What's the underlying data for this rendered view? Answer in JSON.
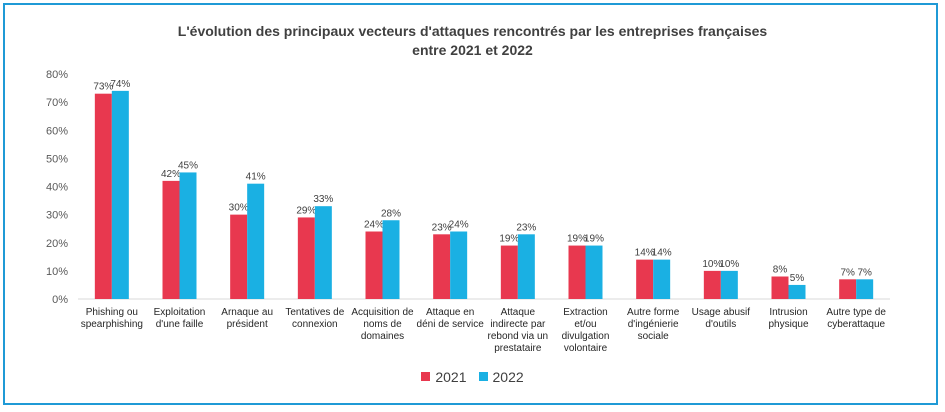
{
  "chart_data": {
    "type": "bar",
    "title_line1": "L'évolution des principaux vecteurs d'attaques rencontrés par les entreprises françaises",
    "title_line2": "entre 2021 et 2022",
    "xlabel": "",
    "ylabel": "",
    "ylim": [
      0,
      80
    ],
    "yticks": [
      "0%",
      "10%",
      "20%",
      "30%",
      "40%",
      "50%",
      "60%",
      "70%",
      "80%"
    ],
    "grid": false,
    "legend_position": "bottom",
    "categories": [
      [
        "Phishing ou",
        "spearphishing"
      ],
      [
        "Exploitation",
        "d'une faille"
      ],
      [
        "Arnaque au",
        "président"
      ],
      [
        "Tentatives de",
        "connexion"
      ],
      [
        "Acquisition de",
        "noms de",
        "domaines"
      ],
      [
        "Attaque en",
        "déni de service"
      ],
      [
        "Attaque",
        "indirecte par",
        "rebond via un",
        "prestataire"
      ],
      [
        "Extraction",
        "et/ou",
        "divulgation",
        "volontaire"
      ],
      [
        "Autre forme",
        "d'ingénierie",
        "sociale"
      ],
      [
        "Usage abusif",
        "d'outils"
      ],
      [
        "Intrusion",
        "physique"
      ],
      [
        "Autre type de",
        "cyberattaque"
      ]
    ],
    "series": [
      {
        "name": "2021",
        "color": "#e8384f",
        "values": [
          73,
          42,
          30,
          29,
          24,
          23,
          19,
          19,
          14,
          10,
          8,
          7
        ]
      },
      {
        "name": "2022",
        "color": "#1ab0e3",
        "values": [
          74,
          45,
          41,
          33,
          28,
          24,
          23,
          19,
          14,
          10,
          5,
          7
        ]
      }
    ]
  }
}
